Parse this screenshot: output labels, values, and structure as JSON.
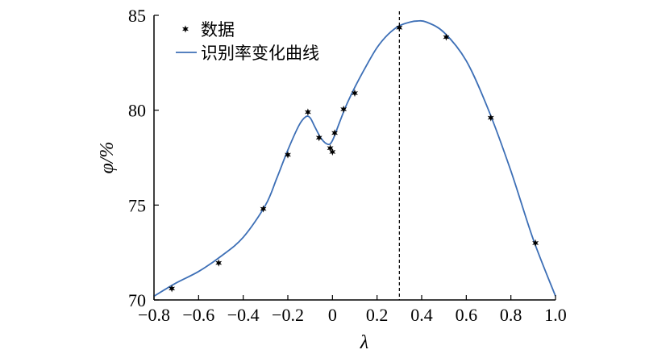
{
  "chart_data": {
    "type": "line",
    "xlabel": "λ",
    "ylabel": "φ/%",
    "xlim": [
      -0.8,
      1.0
    ],
    "ylim": [
      70,
      85
    ],
    "x_ticks": [
      -0.8,
      -0.6,
      -0.4,
      -0.2,
      0,
      0.2,
      0.4,
      0.6,
      0.8,
      1.0
    ],
    "x_tick_labels": [
      "−0.8",
      "−0.6",
      "−0.4",
      "−0.2",
      "0",
      "0.2",
      "0.4",
      "0.6",
      "0.8",
      "1.0"
    ],
    "y_ticks": [
      70,
      75,
      80,
      85
    ],
    "y_tick_labels": [
      "70",
      "75",
      "80",
      "85"
    ],
    "grid": false,
    "legend_position": "top-left",
    "series": [
      {
        "name": "数据",
        "kind": "scatter",
        "marker": "star",
        "color": "#000000",
        "x": [
          -0.72,
          -0.51,
          -0.31,
          -0.2,
          -0.11,
          -0.06,
          -0.01,
          0.0,
          0.01,
          0.05,
          0.1,
          0.3,
          0.51,
          0.71,
          0.91
        ],
        "y": [
          70.6,
          71.95,
          74.8,
          77.65,
          79.9,
          78.55,
          78.0,
          77.8,
          78.8,
          80.05,
          80.9,
          84.35,
          83.85,
          79.6,
          73.0
        ]
      },
      {
        "name": "识别率变化曲线",
        "kind": "line",
        "color": "#3d6fb6",
        "x": [
          -0.8,
          -0.7,
          -0.6,
          -0.5,
          -0.4,
          -0.3,
          -0.25,
          -0.2,
          -0.15,
          -0.12,
          -0.1,
          -0.08,
          -0.05,
          -0.02,
          0.0,
          0.03,
          0.06,
          0.1,
          0.15,
          0.2,
          0.25,
          0.3,
          0.35,
          0.38,
          0.42,
          0.5,
          0.6,
          0.7,
          0.8,
          0.9,
          1.0
        ],
        "y": [
          70.2,
          70.9,
          71.5,
          72.3,
          73.3,
          75.0,
          76.4,
          77.9,
          79.2,
          79.65,
          79.6,
          79.15,
          78.5,
          78.2,
          78.4,
          79.3,
          80.2,
          81.2,
          82.3,
          83.3,
          84.0,
          84.45,
          84.65,
          84.7,
          84.65,
          84.1,
          82.6,
          80.0,
          76.8,
          73.2,
          70.2
        ]
      }
    ],
    "annotations": [
      {
        "type": "vline",
        "x": 0.3,
        "style": "dashed"
      }
    ]
  }
}
